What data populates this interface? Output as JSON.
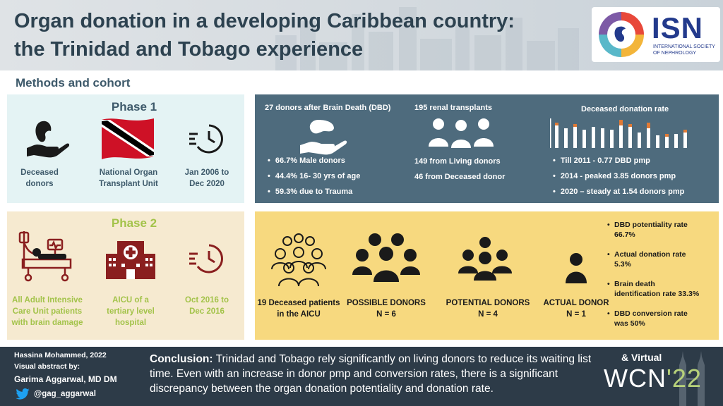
{
  "header": {
    "title_line1": "Organ donation in a developing Caribbean country:",
    "title_line2": "the Trinidad and Tobago experience",
    "logo_text": "ISN",
    "logo_subtitle_line1": "International Society",
    "logo_subtitle_line2": "of Nephrology"
  },
  "section_title": "Methods and cohort",
  "phase1": {
    "title": "Phase 1",
    "items": [
      {
        "line1": "Deceased",
        "line2": "donors"
      },
      {
        "line1": "National Organ",
        "line2": "Transplant Unit"
      },
      {
        "line1": "Jan 2006 to",
        "line2": "Dec 2020"
      }
    ]
  },
  "phase2": {
    "title": "Phase 2",
    "items": [
      {
        "line1": "All Adult Intensive",
        "line2": "Care Unit patients",
        "line3": "with brain damage"
      },
      {
        "line1": "AICU of a",
        "line2": "tertiary level",
        "line3": "hospital"
      },
      {
        "line1": "Oct 2016 to",
        "line2": "Dec 2016"
      }
    ]
  },
  "dbd": {
    "heading": "27 donors after Brain Death (DBD)",
    "bullets": [
      "66.7% Male donors",
      "44.4% 16- 30 yrs of age",
      "59.3% due to Trauma"
    ]
  },
  "transplants": {
    "heading": "195 renal transplants",
    "line1": "149 from Living donors",
    "line2": "46 from Deceased donor"
  },
  "rate": {
    "heading": "Deceased donation rate",
    "bullets": [
      "Till 2011 - 0.77 DBD pmp",
      "2014 -  peaked 3.85 donors pmp",
      "2020 – steady at 1.54 donors pmp"
    ]
  },
  "funnel": {
    "aicu": {
      "line1": "19 Deceased patients",
      "line2": "in the AICU"
    },
    "possible": {
      "line1": "POSSIBLE DONORS",
      "line2": "N = 6"
    },
    "potential": {
      "line1": "POTENTIAL DONORS",
      "line2": "N = 4"
    },
    "actual": {
      "line1": "ACTUAL DONOR",
      "line2": "N = 1"
    }
  },
  "rates": [
    {
      "line1": "DBD potentiality rate",
      "line2": "66.7%"
    },
    {
      "line1": "Actual donation rate",
      "line2": "5.3%"
    },
    {
      "line1": "Brain death",
      "line2": "identification rate 33.3%"
    },
    {
      "line1": "DBD conversion rate",
      "line2": "was 50%"
    }
  ],
  "footer": {
    "author": "Hassina Mohammed, 2022",
    "abstract_by": "Visual abstract by:",
    "illustrator": "Garima Aggarwal, MD DM",
    "handle": "@gag_aggarwal",
    "conclusion_label": "Conclusion:",
    "conclusion_text": " Trinidad and Tobago rely significantly on living donors to reduce its waiting list time. Even with an increase in donor pmp and conversion rates, there is a significant discrepancy between the organ donation potentiality and donation rate.",
    "virtual": "& Virtual",
    "wcn": "WCN",
    "wcn_year": "'22"
  },
  "colors": {
    "title": "#2d4250",
    "phase1_bg": "#e4f3f4",
    "phase2_bg": "#f6ead0",
    "dbd_bg": "#4e6b7d",
    "funnel_bg": "#f7d97f",
    "footer_bg": "#2d3b48",
    "phase_green": "#a3c34a",
    "chart_orange": "#e07a35"
  }
}
